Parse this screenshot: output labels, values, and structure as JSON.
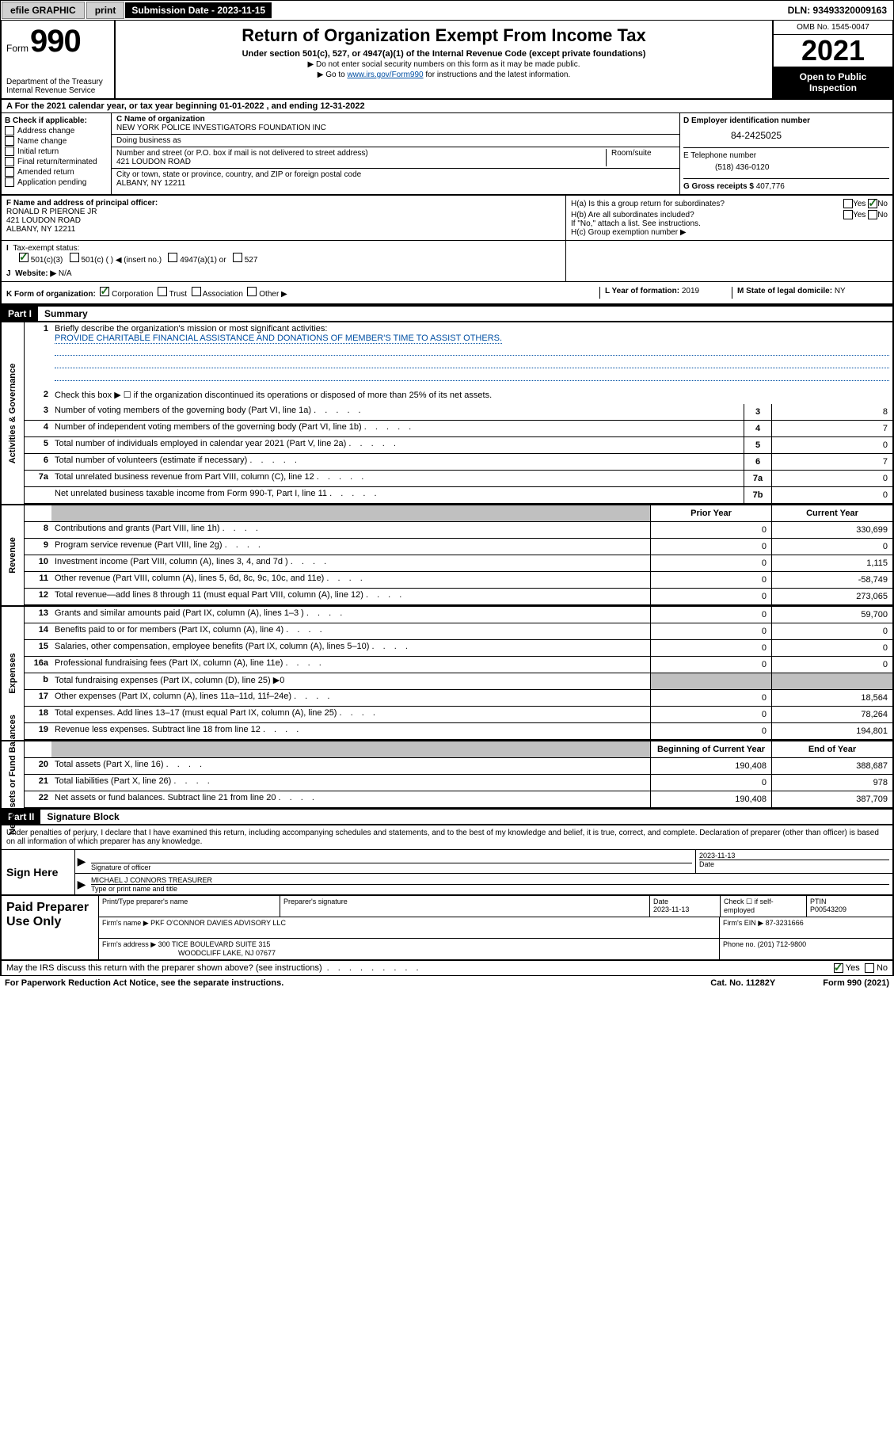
{
  "topbar": {
    "efile": "efile GRAPHIC",
    "print": "print",
    "sub_label": "Submission Date - 2023-11-15",
    "dln": "DLN: 93493320009163"
  },
  "header": {
    "form_word": "Form",
    "form_num": "990",
    "dept": "Department of the Treasury",
    "irs": "Internal Revenue Service",
    "title": "Return of Organization Exempt From Income Tax",
    "subtitle": "Under section 501(c), 527, or 4947(a)(1) of the Internal Revenue Code (except private foundations)",
    "inst1": "▶ Do not enter social security numbers on this form as it may be made public.",
    "inst2_pre": "▶ Go to ",
    "inst2_link": "www.irs.gov/Form990",
    "inst2_post": " for instructions and the latest information.",
    "omb": "OMB No. 1545-0047",
    "year": "2021",
    "open": "Open to Public Inspection"
  },
  "section_a": "A For the 2021 calendar year, or tax year beginning 01-01-2022   , and ending 12-31-2022",
  "box_b": {
    "title": "B Check if applicable:",
    "items": [
      "Address change",
      "Name change",
      "Initial return",
      "Final return/terminated",
      "Amended return",
      "Application pending"
    ]
  },
  "box_c": {
    "label_name": "C Name of organization",
    "name": "NEW YORK POLICE INVESTIGATORS FOUNDATION INC",
    "dba_label": "Doing business as",
    "street_label": "Number and street (or P.O. box if mail is not delivered to street address)",
    "room_label": "Room/suite",
    "street": "421 LOUDON ROAD",
    "city_label": "City or town, state or province, country, and ZIP or foreign postal code",
    "city": "ALBANY, NY  12211"
  },
  "box_d": {
    "label": "D Employer identification number",
    "ein": "84-2425025",
    "e_label": "E Telephone number",
    "phone": "(518) 436-0120",
    "g_label": "G Gross receipts $",
    "gross": "407,776"
  },
  "box_f": {
    "label": "F Name and address of principal officer:",
    "name": "RONALD R PIERONE JR",
    "street": "421 LOUDON ROAD",
    "city": "ALBANY, NY  12211"
  },
  "box_h": {
    "ha": "H(a)  Is this a group return for subordinates?",
    "hb": "H(b)  Are all subordinates included?",
    "hb_note": "If \"No,\" attach a list. See instructions.",
    "hc": "H(c)  Group exemption number ▶"
  },
  "box_i": {
    "label": "Tax-exempt status:",
    "opts": [
      "501(c)(3)",
      "501(c) (  ) ◀ (insert no.)",
      "4947(a)(1) or",
      "527"
    ]
  },
  "box_j": {
    "label": "Website: ▶",
    "val": "N/A"
  },
  "box_k": "K Form of organization:",
  "k_opts": [
    "Corporation",
    "Trust",
    "Association",
    "Other ▶"
  ],
  "box_l": {
    "label": "L Year of formation:",
    "val": "2019"
  },
  "box_m": {
    "label": "M State of legal domicile:",
    "val": "NY"
  },
  "part1": {
    "header": "Part I",
    "title": "Summary"
  },
  "side_labels": {
    "gov": "Activities & Governance",
    "rev": "Revenue",
    "exp": "Expenses",
    "net": "Net Assets or Fund Balances"
  },
  "q1": {
    "num": "1",
    "desc": "Briefly describe the organization's mission or most significant activities:",
    "mission": "PROVIDE CHARITABLE FINANCIAL ASSISTANCE AND DONATIONS OF MEMBER'S TIME TO ASSIST OTHERS."
  },
  "q2": {
    "num": "2",
    "desc": "Check this box ▶ ☐  if the organization discontinued its operations or disposed of more than 25% of its net assets."
  },
  "gov_rows": [
    {
      "num": "3",
      "desc": "Number of voting members of the governing body (Part VI, line 1a)",
      "box": "3",
      "val": "8"
    },
    {
      "num": "4",
      "desc": "Number of independent voting members of the governing body (Part VI, line 1b)",
      "box": "4",
      "val": "7"
    },
    {
      "num": "5",
      "desc": "Total number of individuals employed in calendar year 2021 (Part V, line 2a)",
      "box": "5",
      "val": "0"
    },
    {
      "num": "6",
      "desc": "Total number of volunteers (estimate if necessary)",
      "box": "6",
      "val": "7"
    },
    {
      "num": "7a",
      "desc": "Total unrelated business revenue from Part VIII, column (C), line 12",
      "box": "7a",
      "val": "0"
    },
    {
      "num": "",
      "desc": "Net unrelated business taxable income from Form 990-T, Part I, line 11",
      "box": "7b",
      "val": "0"
    }
  ],
  "col_headers": {
    "prior": "Prior Year",
    "current": "Current Year",
    "boy": "Beginning of Current Year",
    "eoy": "End of Year"
  },
  "rev_rows": [
    {
      "num": "8",
      "desc": "Contributions and grants (Part VIII, line 1h)",
      "prior": "0",
      "curr": "330,699"
    },
    {
      "num": "9",
      "desc": "Program service revenue (Part VIII, line 2g)",
      "prior": "0",
      "curr": "0"
    },
    {
      "num": "10",
      "desc": "Investment income (Part VIII, column (A), lines 3, 4, and 7d )",
      "prior": "0",
      "curr": "1,115"
    },
    {
      "num": "11",
      "desc": "Other revenue (Part VIII, column (A), lines 5, 6d, 8c, 9c, 10c, and 11e)",
      "prior": "0",
      "curr": "-58,749"
    },
    {
      "num": "12",
      "desc": "Total revenue—add lines 8 through 11 (must equal Part VIII, column (A), line 12)",
      "prior": "0",
      "curr": "273,065"
    }
  ],
  "exp_rows": [
    {
      "num": "13",
      "desc": "Grants and similar amounts paid (Part IX, column (A), lines 1–3 )",
      "prior": "0",
      "curr": "59,700"
    },
    {
      "num": "14",
      "desc": "Benefits paid to or for members (Part IX, column (A), line 4)",
      "prior": "0",
      "curr": "0"
    },
    {
      "num": "15",
      "desc": "Salaries, other compensation, employee benefits (Part IX, column (A), lines 5–10)",
      "prior": "0",
      "curr": "0"
    },
    {
      "num": "16a",
      "desc": "Professional fundraising fees (Part IX, column (A), line 11e)",
      "prior": "0",
      "curr": "0"
    },
    {
      "num": "b",
      "desc": "Total fundraising expenses (Part IX, column (D), line 25) ▶0",
      "prior": "",
      "curr": "",
      "shaded": true
    },
    {
      "num": "17",
      "desc": "Other expenses (Part IX, column (A), lines 11a–11d, 11f–24e)",
      "prior": "0",
      "curr": "18,564"
    },
    {
      "num": "18",
      "desc": "Total expenses. Add lines 13–17 (must equal Part IX, column (A), line 25)",
      "prior": "0",
      "curr": "78,264"
    },
    {
      "num": "19",
      "desc": "Revenue less expenses. Subtract line 18 from line 12",
      "prior": "0",
      "curr": "194,801"
    }
  ],
  "net_rows": [
    {
      "num": "20",
      "desc": "Total assets (Part X, line 16)",
      "prior": "190,408",
      "curr": "388,687"
    },
    {
      "num": "21",
      "desc": "Total liabilities (Part X, line 26)",
      "prior": "0",
      "curr": "978"
    },
    {
      "num": "22",
      "desc": "Net assets or fund balances. Subtract line 21 from line 20",
      "prior": "190,408",
      "curr": "387,709"
    }
  ],
  "part2": {
    "header": "Part II",
    "title": "Signature Block"
  },
  "declare": "Under penalties of perjury, I declare that I have examined this return, including accompanying schedules and statements, and to the best of my knowledge and belief, it is true, correct, and complete. Declaration of preparer (other than officer) is based on all information of which preparer has any knowledge.",
  "sign": {
    "here": "Sign Here",
    "sig_label": "Signature of officer",
    "date_label": "Date",
    "date": "2023-11-13",
    "name": "MICHAEL J CONNORS TREASURER",
    "name_label": "Type or print name and title"
  },
  "preparer": {
    "title": "Paid Preparer Use Only",
    "h_name": "Print/Type preparer's name",
    "h_sig": "Preparer's signature",
    "h_date": "Date",
    "date": "2023-11-13",
    "h_check": "Check ☐ if self-employed",
    "h_ptin": "PTIN",
    "ptin": "P00543209",
    "firm_label": "Firm's name      ▶",
    "firm": "PKF O'CONNOR DAVIES ADVISORY LLC",
    "ein_label": "Firm's EIN ▶",
    "ein": "87-3231666",
    "addr_label": "Firm's address ▶",
    "addr1": "300 TICE BOULEVARD SUITE 315",
    "addr2": "WOODCLIFF LAKE, NJ  07677",
    "phone_label": "Phone no.",
    "phone": "(201) 712-9800"
  },
  "footer": {
    "discuss": "May the IRS discuss this return with the preparer shown above? (see instructions)",
    "yes": "Yes",
    "no": "No",
    "paperwork": "For Paperwork Reduction Act Notice, see the separate instructions.",
    "cat": "Cat. No. 11282Y",
    "form": "Form 990 (2021)"
  }
}
